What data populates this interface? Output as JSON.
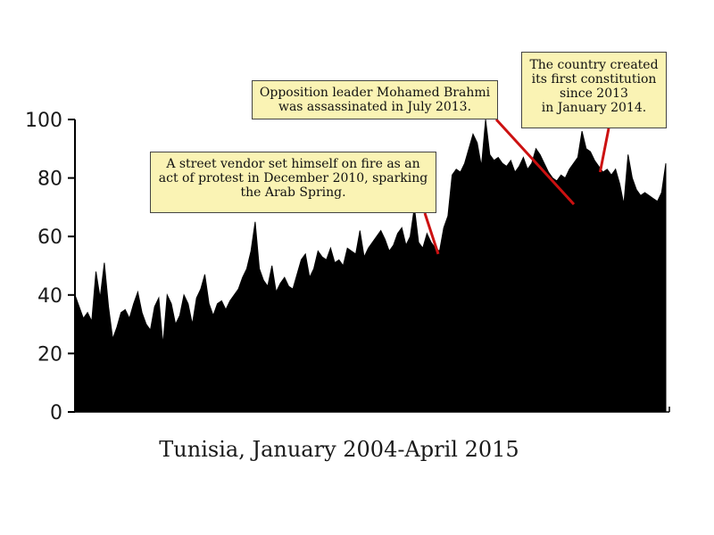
{
  "chart_data": {
    "type": "area",
    "xlabel": "Tunisia, January 2004-April 2015",
    "ylabel": "",
    "title": "",
    "ylim": [
      0,
      100
    ],
    "yticks": [
      0,
      20,
      40,
      60,
      80,
      100
    ],
    "grid": false,
    "legend": "none",
    "fill_color": "#000000",
    "x_start": "2004-01",
    "x_end": "2015-04",
    "series": [
      {
        "values": [
          40,
          36,
          32,
          34,
          31,
          48,
          39,
          51,
          36,
          25,
          29,
          34,
          35,
          32,
          37,
          41,
          34,
          30,
          28,
          36,
          39,
          23,
          40,
          37,
          30,
          33,
          40,
          37,
          30,
          39,
          42,
          47,
          37,
          33,
          37,
          38,
          35,
          38,
          40,
          42,
          46,
          49,
          55,
          65,
          49,
          45,
          43,
          50,
          41,
          44,
          46,
          43,
          42,
          47,
          52,
          54,
          46,
          49,
          55,
          53,
          52,
          56,
          51,
          52,
          50,
          56,
          55,
          54,
          62,
          53,
          56,
          58,
          60,
          62,
          59,
          55,
          57,
          61,
          63,
          57,
          60,
          70,
          58,
          56,
          61,
          58,
          56,
          55,
          63,
          67,
          81,
          83,
          82,
          85,
          90,
          95,
          92,
          84,
          100,
          88,
          86,
          87,
          85,
          84,
          86,
          82,
          84,
          87,
          83,
          85,
          90,
          88,
          85,
          82,
          80,
          79,
          81,
          80,
          83,
          85,
          87,
          96,
          90,
          89,
          86,
          84,
          82,
          83,
          81,
          83,
          78,
          71,
          88,
          80,
          76,
          74,
          75,
          74,
          73,
          72,
          75,
          85
        ]
      }
    ],
    "annotations": [
      {
        "lines": [
          "A street vendor set himself on fire as an",
          "act of protest in December 2010, sparking",
          "the Arab Spring."
        ],
        "date": "2010-12",
        "value": 54,
        "color": "#cc1111"
      },
      {
        "lines": [
          "Opposition leader Mohamed Brahmi",
          "was assassinated in July 2013."
        ],
        "date": "2013-07",
        "value": 71,
        "color": "#cc1111"
      },
      {
        "lines": [
          "The country created",
          "its first constitution",
          "since 2013",
          "in January 2014."
        ],
        "date": "2014-01",
        "value": 82,
        "color": "#cc1111"
      }
    ]
  }
}
